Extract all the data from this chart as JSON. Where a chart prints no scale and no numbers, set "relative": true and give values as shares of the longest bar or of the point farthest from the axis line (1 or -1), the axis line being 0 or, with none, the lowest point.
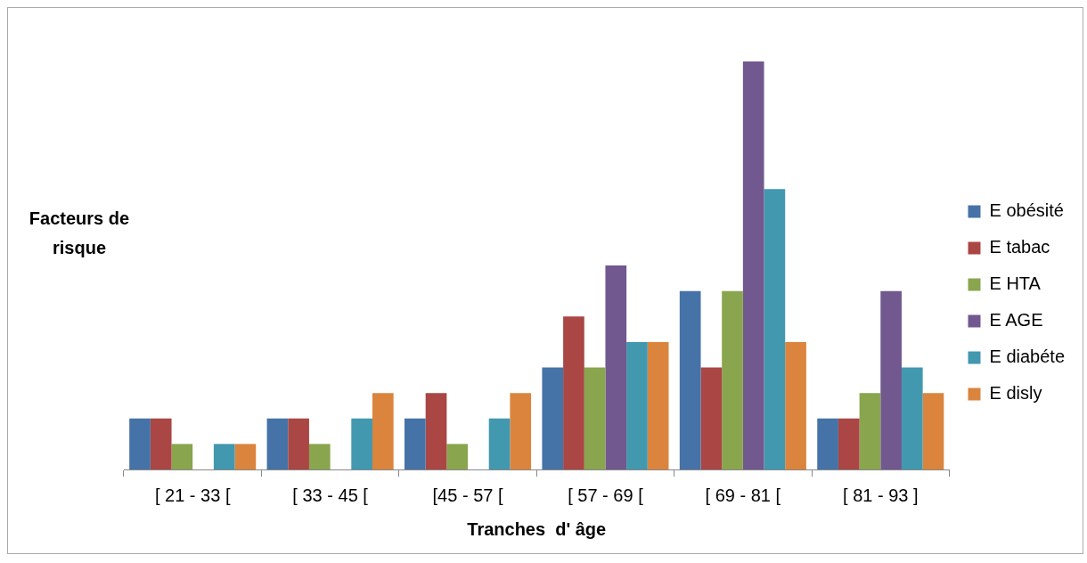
{
  "chart_data": {
    "type": "bar",
    "xlabel": "Tranches  d' âge",
    "ylabel": "Facteurs de risque",
    "relative": true,
    "legend": "right",
    "grid": false,
    "categories": [
      "[ 21 - 33 [",
      "[ 33 - 45 [",
      "[45 - 57 [",
      "[ 57 - 69 [",
      "[ 69 - 81 [",
      "[ 81 - 93 ]"
    ],
    "series": [
      {
        "name": "E obésité",
        "color": "#4572a7",
        "values": [
          0.125,
          0.125,
          0.125,
          0.25,
          0.4375,
          0.125
        ]
      },
      {
        "name": "E tabac",
        "color": "#aa4643",
        "values": [
          0.125,
          0.125,
          0.1875,
          0.375,
          0.25,
          0.125
        ]
      },
      {
        "name": "E HTA",
        "color": "#89a54e",
        "values": [
          0.0625,
          0.0625,
          0.0625,
          0.25,
          0.4375,
          0.1875
        ]
      },
      {
        "name": "E AGE",
        "color": "#71588f",
        "values": [
          0,
          0,
          0,
          0.5,
          1,
          0.4375
        ]
      },
      {
        "name": "E diabéte",
        "color": "#4198af",
        "values": [
          0.0625,
          0.125,
          0.125,
          0.3125,
          0.6875,
          0.25
        ]
      },
      {
        "name": "E disly",
        "color": "#db843d",
        "values": [
          0.0625,
          0.1875,
          0.1875,
          0.3125,
          0.3125,
          0.1875
        ]
      }
    ]
  }
}
